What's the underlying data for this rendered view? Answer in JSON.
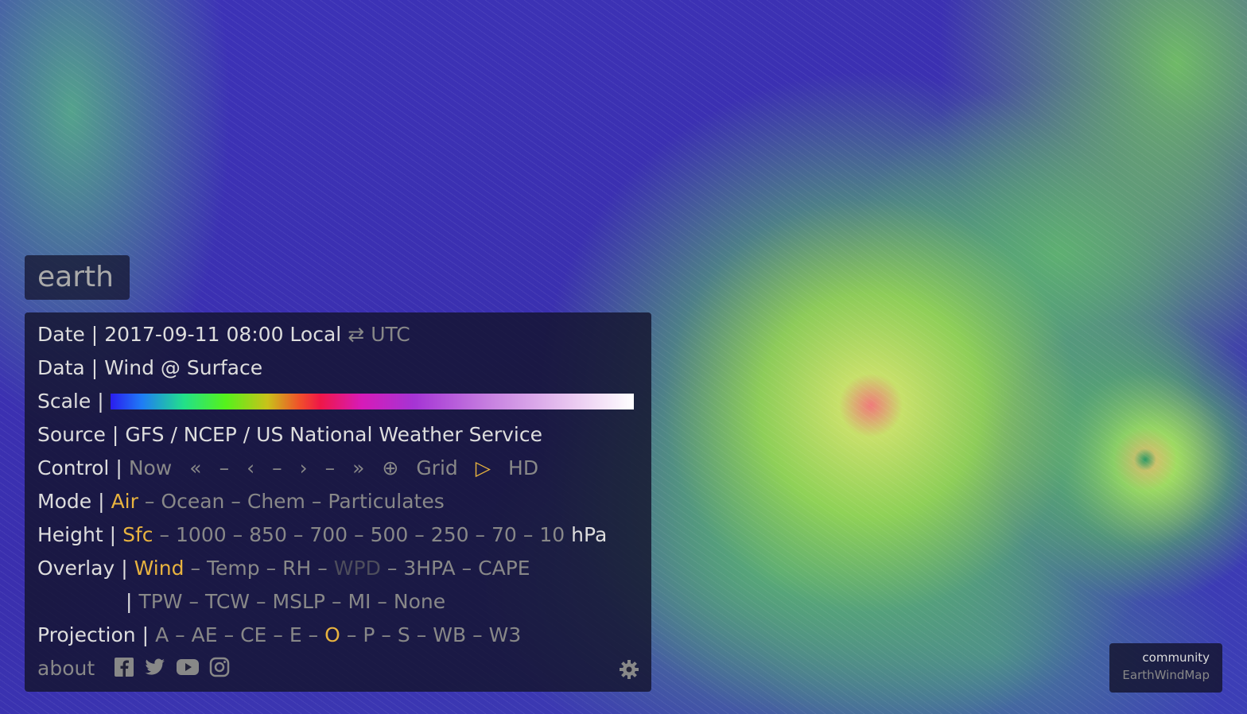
{
  "brand": "earth",
  "separators": {
    "bar": "|",
    "dash": "–"
  },
  "menu": {
    "date": {
      "label": "Date",
      "value": "2017-09-11 08:00 Local",
      "toggle": "⇄",
      "alt": "UTC"
    },
    "data": {
      "label": "Data",
      "value": "Wind @ Surface"
    },
    "scale": {
      "label": "Scale"
    },
    "source": {
      "label": "Source",
      "value": "GFS / NCEP / US National Weather Service"
    },
    "control": {
      "label": "Control",
      "items": [
        "Now",
        "«",
        "–",
        "‹",
        "–",
        "›",
        "–",
        "»",
        "⊕",
        "Grid",
        "▷",
        "HD"
      ],
      "active": [
        10
      ]
    },
    "mode": {
      "label": "Mode",
      "items": [
        "Air",
        "Ocean",
        "Chem",
        "Particulates"
      ],
      "active": [
        0
      ]
    },
    "height": {
      "label": "Height",
      "items": [
        "Sfc",
        "1000",
        "850",
        "700",
        "500",
        "250",
        "70",
        "10"
      ],
      "active": [
        0
      ],
      "unit": "hPa"
    },
    "overlay": {
      "label": "Overlay",
      "lines": [
        [
          "Wind",
          "Temp",
          "RH",
          "WPD",
          "3HPA",
          "CAPE"
        ],
        [
          "TPW",
          "TCW",
          "MSLP",
          "MI",
          "None"
        ]
      ],
      "active": [
        0
      ],
      "disabled": [
        3
      ]
    },
    "projection": {
      "label": "Projection",
      "items": [
        "A",
        "AE",
        "CE",
        "E",
        "O",
        "P",
        "S",
        "WB",
        "W3"
      ],
      "active": [
        4
      ]
    },
    "about": "about"
  },
  "community": {
    "title": "community",
    "link": "EarthWindMap"
  }
}
